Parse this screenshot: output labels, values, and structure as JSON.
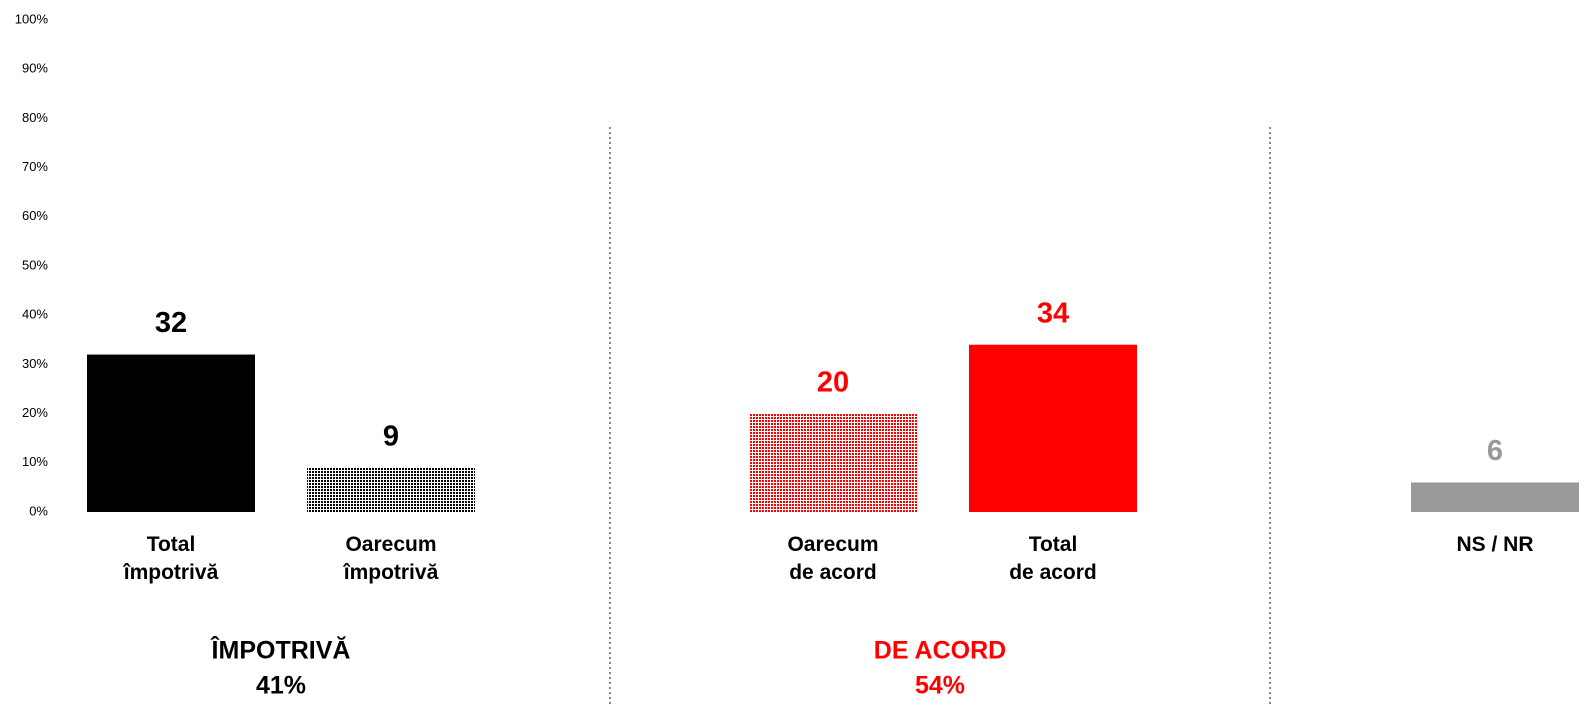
{
  "chart_data": {
    "type": "bar",
    "categories": [
      "Total\nîmpotrivă",
      "Oarecum\nîmpotrivă",
      "Oarecum\nde acord",
      "Total\nde acord",
      "NS / NR"
    ],
    "values": [
      32,
      9,
      20,
      34,
      6
    ],
    "colors": [
      "#000000",
      "#000000",
      "#ff0000",
      "#ff0000",
      "#999999"
    ],
    "dotted": [
      false,
      true,
      true,
      false,
      false
    ],
    "ylim": [
      0,
      100
    ],
    "yticks": [
      {
        "value": 0,
        "label": "0%"
      },
      {
        "value": 10,
        "label": "10%"
      },
      {
        "value": 20,
        "label": "20%"
      },
      {
        "value": 30,
        "label": "30%"
      },
      {
        "value": 40,
        "label": "40%"
      },
      {
        "value": 50,
        "label": "50%"
      },
      {
        "value": 60,
        "label": "60%"
      },
      {
        "value": 70,
        "label": "70%"
      },
      {
        "value": 80,
        "label": "80%"
      },
      {
        "value": 90,
        "label": "90%"
      },
      {
        "value": 100,
        "label": "100%"
      }
    ],
    "grid": false,
    "groups": [
      {
        "title": "ÎMPOTRIVĂ",
        "total": "41%",
        "color": "#000000"
      },
      {
        "title": "DE ACORD",
        "total": "54%",
        "color": "#ff0000"
      }
    ]
  }
}
